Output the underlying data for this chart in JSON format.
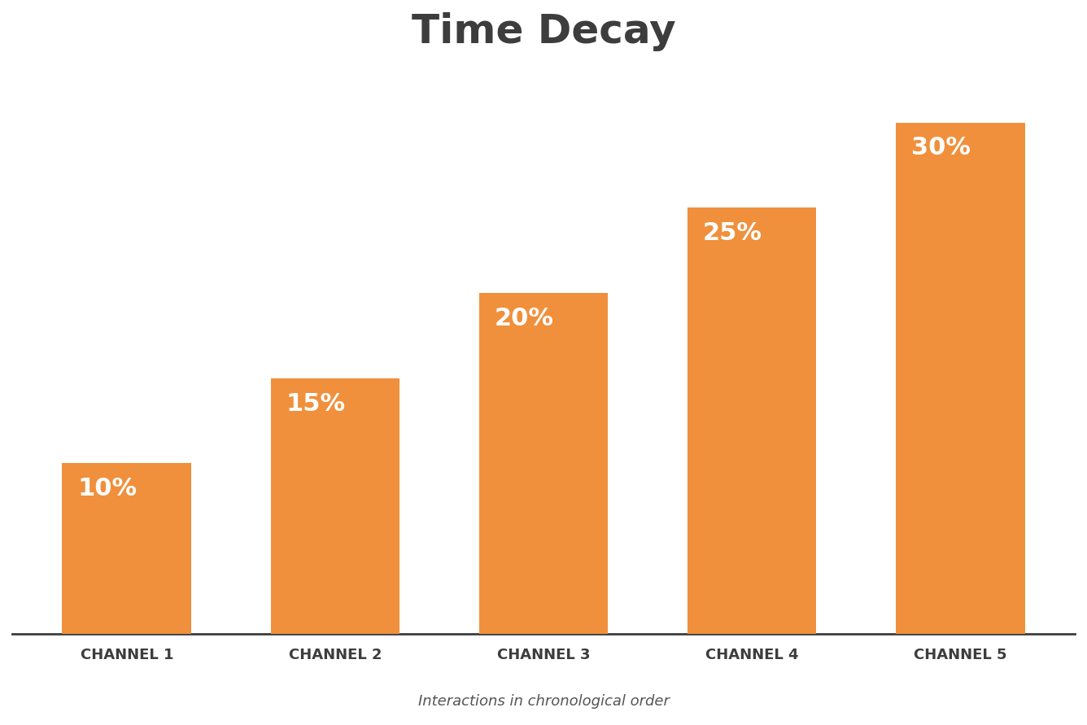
{
  "title": "Time Decay",
  "subtitle": "Interactions in chronological order",
  "categories": [
    "CHANNEL 1",
    "CHANNEL 2",
    "CHANNEL 3",
    "CHANNEL 4",
    "CHANNEL 5"
  ],
  "values": [
    10,
    15,
    20,
    25,
    30
  ],
  "labels": [
    "10%",
    "15%",
    "20%",
    "25%",
    "30%"
  ],
  "bar_color": "#F0903C",
  "label_color": "#FFFFFF",
  "title_color": "#3d3d3d",
  "subtitle_color": "#555555",
  "xtick_color": "#3d3d3d",
  "background_color": "#FFFFFF",
  "title_fontsize": 36,
  "subtitle_fontsize": 13,
  "label_fontsize": 22,
  "xtick_fontsize": 13,
  "ylim": [
    0,
    33
  ],
  "bar_width": 0.62
}
